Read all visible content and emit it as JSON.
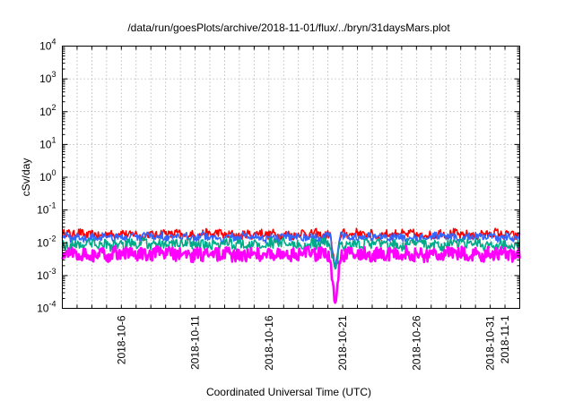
{
  "chart_data": {
    "type": "line",
    "title": "/data/run/goesPlots/archive/2018-11-01/flux/../bryn/31daysMars.plot",
    "xlabel": "Coordinated Universal Time (UTC)",
    "ylabel": "cSv/day",
    "yscale": "log",
    "ylim": [
      0.0001,
      10000
    ],
    "y_ticks": [
      {
        "value": 0.0001,
        "base": "10",
        "exp": "-4"
      },
      {
        "value": 0.001,
        "base": "10",
        "exp": "-3"
      },
      {
        "value": 0.01,
        "base": "10",
        "exp": "-2"
      },
      {
        "value": 0.1,
        "base": "10",
        "exp": "-1"
      },
      {
        "value": 1,
        "base": "10",
        "exp": "0"
      },
      {
        "value": 10,
        "base": "10",
        "exp": "1"
      },
      {
        "value": 100,
        "base": "10",
        "exp": "2"
      },
      {
        "value": 1000,
        "base": "10",
        "exp": "3"
      },
      {
        "value": 10000,
        "base": "10",
        "exp": "4"
      }
    ],
    "xlim": [
      "2018-10-02",
      "2018-11-02"
    ],
    "x_tick_labels": [
      {
        "date": "2018-10-06",
        "label": "2018-10-6"
      },
      {
        "date": "2018-10-11",
        "label": "2018-10-11"
      },
      {
        "date": "2018-10-16",
        "label": "2018-10-16"
      },
      {
        "date": "2018-10-21",
        "label": "2018-10-21"
      },
      {
        "date": "2018-10-26",
        "label": "2018-10-26"
      },
      {
        "date": "2018-10-31",
        "label": "2018-10-31"
      },
      {
        "date": "2018-11-01",
        "label": "2018-11-1"
      }
    ],
    "grid": true,
    "series": [
      {
        "color": "#ff0000",
        "level": 0.018,
        "spread": 0.13
      },
      {
        "color": "#3366ff",
        "level": 0.015,
        "spread": 0.12
      },
      {
        "color": "#00aa88",
        "level": 0.009,
        "spread": 0.15
      },
      {
        "color": "#ff00ff",
        "level": 0.0045,
        "spread": 0.2
      }
    ],
    "dip": {
      "date": "2018-10-20",
      "min": 0.0001
    }
  }
}
